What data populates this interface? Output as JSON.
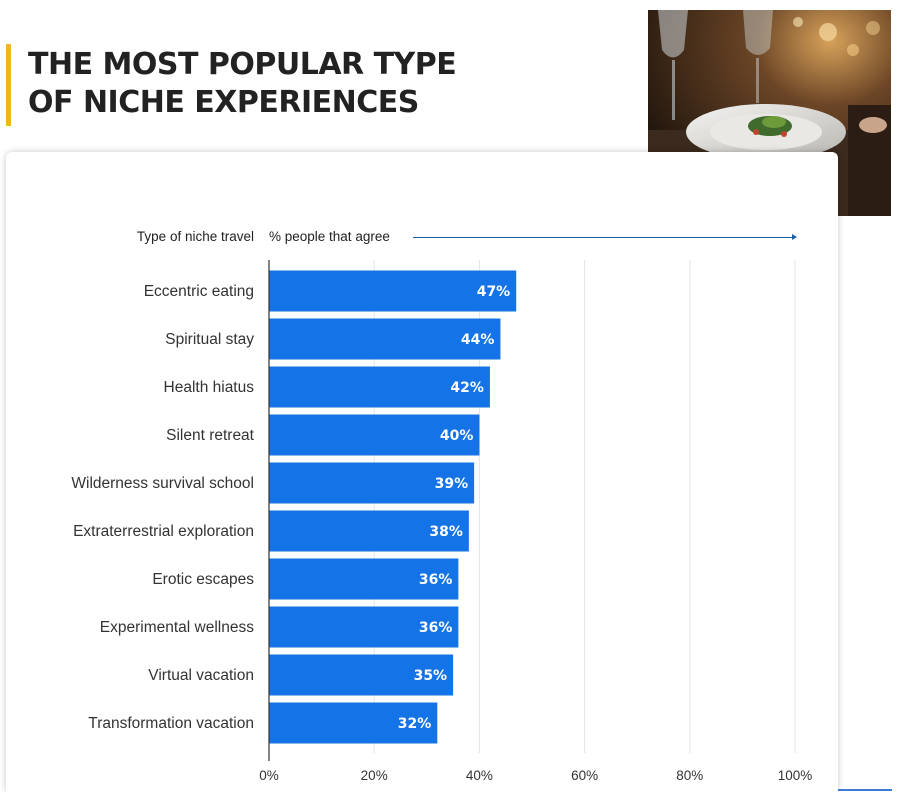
{
  "headline": {
    "line1": "THE MOST POPULAR TYPE",
    "line2": "OF NICHE EXPERIENCES"
  },
  "photo": {
    "icon": "fine-dining-photo"
  },
  "chart_data": {
    "type": "bar",
    "orientation": "horizontal",
    "category_header": "Type of niche travel",
    "value_header": "% people that agree",
    "categories": [
      "Eccentric eating",
      "Spiritual stay",
      "Health hiatus",
      "Silent retreat",
      "Wilderness survival school",
      "Extraterrestrial exploration",
      "Erotic escapes",
      "Experimental wellness",
      "Virtual vacation",
      "Transformation vacation"
    ],
    "values": [
      47,
      44,
      42,
      40,
      39,
      38,
      36,
      36,
      35,
      32
    ],
    "value_labels": [
      "47%",
      "44%",
      "42%",
      "40%",
      "39%",
      "38%",
      "36%",
      "36%",
      "35%",
      "32%"
    ],
    "xlim": [
      0,
      100
    ],
    "ticks": [
      0,
      20,
      40,
      60,
      80,
      100
    ],
    "tick_labels": [
      "0%",
      "20%",
      "40%",
      "60%",
      "80%",
      "100%"
    ],
    "grid": true,
    "bar_color": "#1473e6"
  }
}
